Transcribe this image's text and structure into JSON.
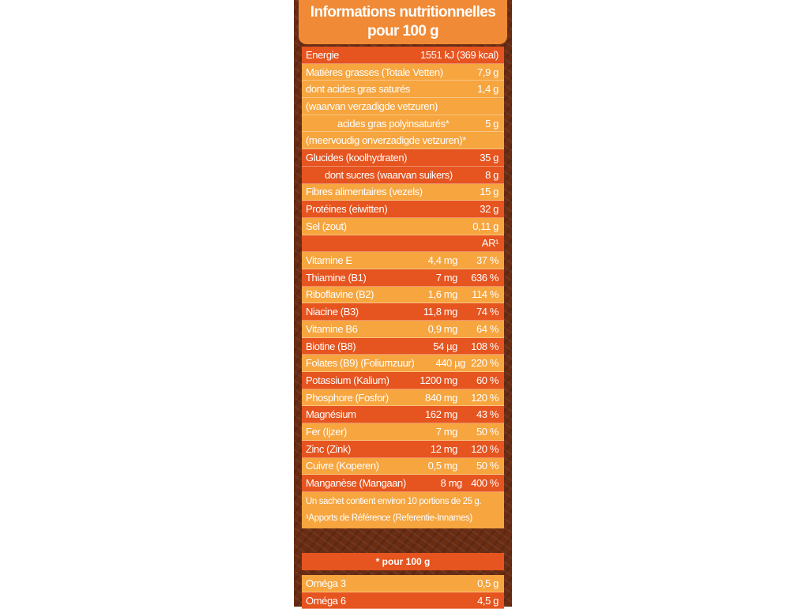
{
  "header": {
    "line1": "Informations nutritionnelles",
    "line2": "pour 100 g"
  },
  "macros": [
    {
      "label": "Energie",
      "value": "1551 kJ (369 kcal)",
      "indent": 0,
      "color": "r"
    },
    {
      "label": "Matières grasses (Totale Vetten)",
      "value": "7,9 g",
      "indent": 0,
      "color": "o"
    },
    {
      "label": "dont acides gras saturés",
      "value": "1,4 g",
      "indent": 0,
      "color": "o"
    },
    {
      "label": "(waarvan verzadigde vetzuren)",
      "value": "",
      "indent": 0,
      "color": "o"
    },
    {
      "label": "acides gras polyinsaturés*",
      "value": "5 g",
      "indent": 2,
      "color": "o"
    },
    {
      "label": "(meervoudig onverzadigde vetzuren)*",
      "value": "",
      "indent": 0,
      "color": "o"
    },
    {
      "label": "Glucides (koolhydraten)",
      "value": "35 g",
      "indent": 0,
      "color": "r"
    },
    {
      "label": "dont sucres (waarvan suikers)",
      "value": "8 g",
      "indent": 1,
      "color": "r"
    },
    {
      "label": "Fibres alimentaires (vezels)",
      "value": "15 g",
      "indent": 0,
      "color": "o"
    },
    {
      "label": "Protéines (eiwitten)",
      "value": "32 g",
      "indent": 0,
      "color": "r"
    },
    {
      "label": "Sel (zout)",
      "value": "0,11 g",
      "indent": 0,
      "color": "o"
    }
  ],
  "ar_header": "AR¹",
  "micros": [
    {
      "label": "Vitamine E",
      "amount": "4,4 mg",
      "pct": "37 %"
    },
    {
      "label": "Thiamine (B1)",
      "amount": "7 mg",
      "pct": "636 %"
    },
    {
      "label": "Riboflavine (B2)",
      "amount": "1,6 mg",
      "pct": "114 %"
    },
    {
      "label": "Niacine (B3)",
      "amount": "11,8 mg",
      "pct": "74 %"
    },
    {
      "label": "Vitamine B6",
      "amount": "0,9 mg",
      "pct": "64 %"
    },
    {
      "label": "Biotine (B8)",
      "amount": "54 µg",
      "pct": "108 %"
    },
    {
      "label": "Folates (B9) (Foliumzuur)",
      "amount": "440 µg",
      "pct": "220 %"
    },
    {
      "label": "Potassium (Kalium)",
      "amount": "1200 mg",
      "pct": "60 %"
    },
    {
      "label": "Phosphore (Fosfor)",
      "amount": "840 mg",
      "pct": "120 %"
    },
    {
      "label": "Magnésium",
      "amount": "162 mg",
      "pct": "43 %"
    },
    {
      "label": "Fer (Ijzer)",
      "amount": "7 mg",
      "pct": "50 %"
    },
    {
      "label": "Zinc (Zink)",
      "amount": "12 mg",
      "pct": "120 %"
    },
    {
      "label": "Cuivre (Koperen)",
      "amount": "0,5 mg",
      "pct": "50 %"
    },
    {
      "label": "Manganèse (Mangaan)",
      "amount": "8 mg",
      "pct": "400 %"
    }
  ],
  "footnotes": {
    "portions": "Un sachet contient environ 10 portions de 25 g.",
    "reference": "¹Apports  de Référence (Referentie-Innames)"
  },
  "omega": {
    "header": "* pour 100 g",
    "rows": [
      {
        "label": "Oméga 3",
        "value": "0,5 g",
        "color": "o"
      },
      {
        "label": "Oméga 6",
        "value": "4,5 g",
        "color": "r"
      }
    ]
  },
  "colors": {
    "orange": "#f6a53f",
    "red_orange": "#e6541f",
    "header_orange": "#f08a36",
    "background_brown": "#6a2d14"
  }
}
